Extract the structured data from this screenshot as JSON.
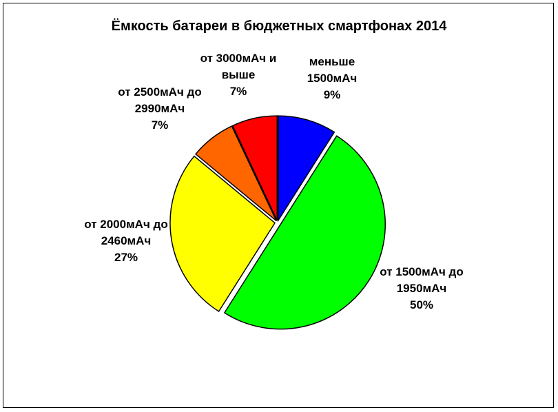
{
  "chart_data": {
    "type": "pie",
    "title": "Ёмкость батареи в бюджетных смартфонах 2014",
    "slices": [
      {
        "label": [
          "меньше",
          "1500мАч"
        ],
        "value": 9,
        "value_label": "9%",
        "color": "#0000FF"
      },
      {
        "label": [
          "от 1500мАч до",
          "1950мАч"
        ],
        "value": 50,
        "value_label": "50%",
        "color": "#00FF00"
      },
      {
        "label": [
          "от 2000мАч до",
          "2460мАч"
        ],
        "value": 27,
        "value_label": "27%",
        "color": "#FFFF00"
      },
      {
        "label": [
          "от 2500мАч до",
          "2990мАч"
        ],
        "value": 7,
        "value_label": "7%",
        "color": "#FF6600"
      },
      {
        "label": [
          "от 3000мАч и",
          "выше"
        ],
        "value": 7,
        "value_label": "7%",
        "color": "#FF0000"
      }
    ],
    "legend": "none",
    "slices_exploded": true
  }
}
